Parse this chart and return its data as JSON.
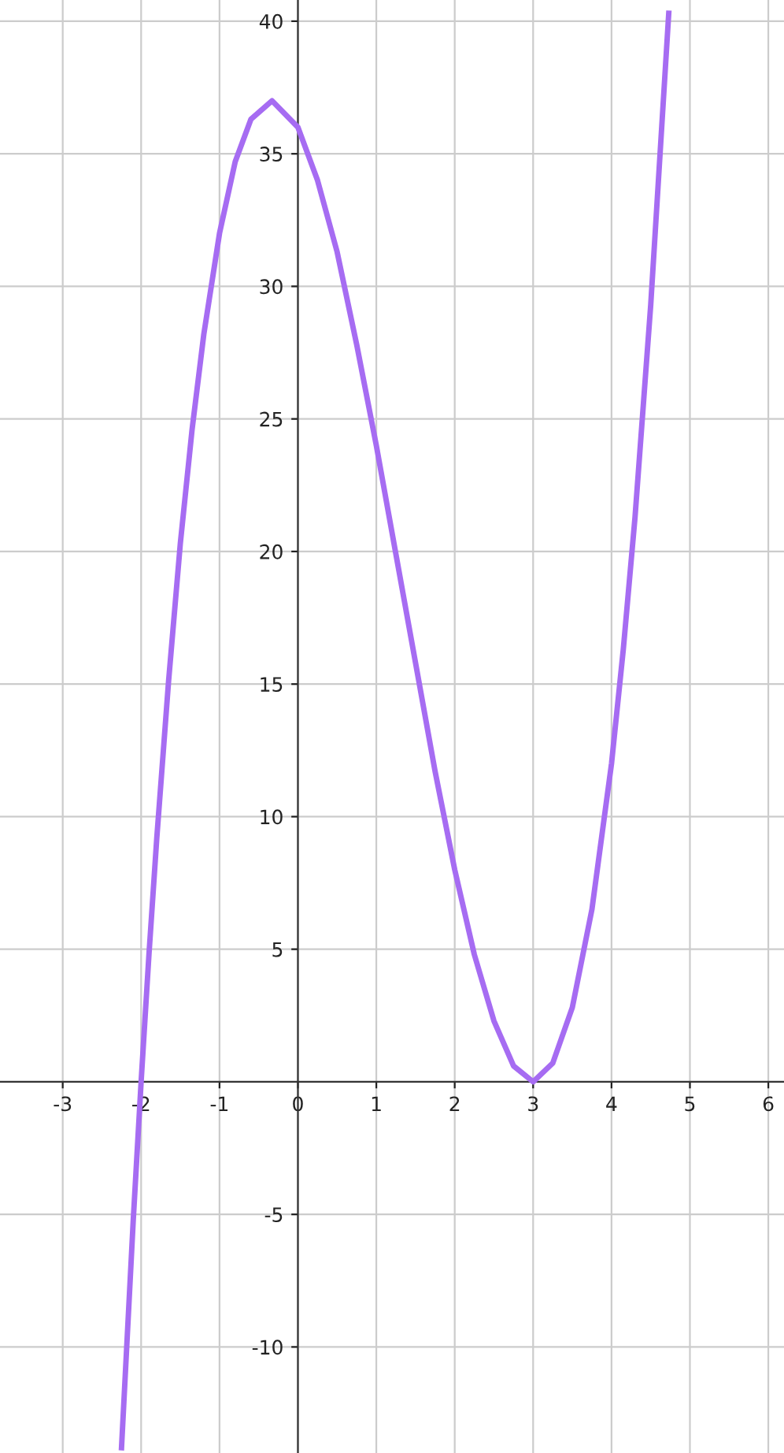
{
  "chart_data": {
    "type": "line",
    "x": [
      -2.25,
      -2.1,
      -2,
      -1.9,
      -1.8,
      -1.65,
      -1.5,
      -1.35,
      -1.2,
      -1,
      -0.8,
      -0.6,
      -0.33,
      0,
      0.25,
      0.5,
      0.75,
      1,
      1.25,
      1.5,
      1.75,
      2,
      2.25,
      2.5,
      2.75,
      3,
      3.25,
      3.5,
      3.75,
      4,
      4.15,
      4.3,
      4.5,
      4.73
    ],
    "series": [
      {
        "color": "#a66cf2",
        "values": [
          -13.8,
          -5.2,
          0,
          4.8,
          9.2,
          15.1,
          20.3,
          24.6,
          28.2,
          32,
          34.7,
          36.3,
          37,
          36,
          34,
          31.3,
          27.8,
          24,
          19.9,
          15.8,
          11.7,
          8,
          4.8,
          2.3,
          0.6,
          0,
          0.7,
          2.8,
          6.5,
          12,
          16.3,
          21.3,
          29.3,
          40.3
        ]
      }
    ],
    "xlim": [
      -3.8,
      6.2
    ],
    "ylim": [
      -14,
      40.8
    ],
    "xticks": [
      -3,
      -2,
      -1,
      0,
      1,
      2,
      3,
      4,
      5,
      6
    ],
    "yticks": [
      -10,
      -5,
      5,
      10,
      15,
      20,
      25,
      30,
      35,
      40
    ],
    "grid": true,
    "marker": "none",
    "line_style": "solid"
  }
}
